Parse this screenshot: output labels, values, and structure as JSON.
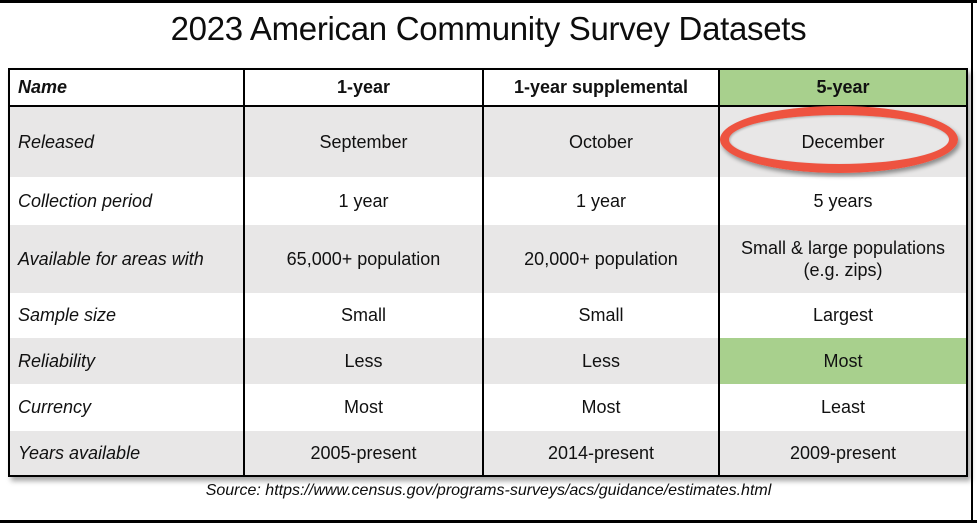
{
  "title": "2023 American Community Survey Datasets",
  "table": {
    "headers": [
      "Name",
      "1-year",
      "1-year supplemental",
      "5-year"
    ],
    "rows": [
      {
        "label": "Released",
        "values": [
          "September",
          "October",
          "December"
        ]
      },
      {
        "label": "Collection period",
        "values": [
          "1 year",
          "1 year",
          "5 years"
        ]
      },
      {
        "label": "Available for areas with",
        "values": [
          "65,000+ population",
          "20,000+ population",
          "Small & large populations\n(e.g. zips)"
        ]
      },
      {
        "label": "Sample size",
        "values": [
          "Small",
          "Small",
          "Largest"
        ]
      },
      {
        "label": "Reliability",
        "values": [
          "Less",
          "Less",
          "Most"
        ]
      },
      {
        "label": "Currency",
        "values": [
          "Most",
          "Most",
          "Least"
        ]
      },
      {
        "label": "Years available",
        "values": [
          "2005-present",
          "2014-present",
          "2009-present"
        ]
      }
    ]
  },
  "annotation": {
    "shape": "ellipse",
    "target": "December (Released, 5-year)",
    "color": "#ee5340"
  },
  "colors": {
    "highlight_green": "#a8d08d",
    "stripe_gray": "#e8e7e7",
    "border_black": "#000000"
  },
  "source": "Source: https://www.census.gov/programs-surveys/acs/guidance/estimates.html"
}
